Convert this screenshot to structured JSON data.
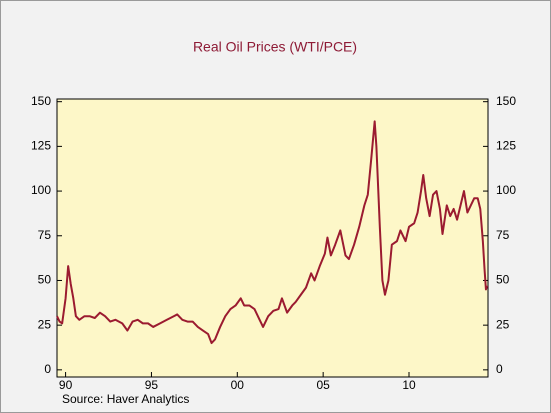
{
  "chart_data": {
    "type": "line",
    "title": "Real Oil Prices (WTI/PCE)",
    "source": "Source: Haver Analytics",
    "xlim": [
      1990,
      2015.1
    ],
    "xticks": [
      {
        "value": 1990.5,
        "label": "90"
      },
      {
        "value": 1995.5,
        "label": "95"
      },
      {
        "value": 2000.5,
        "label": "00"
      },
      {
        "value": 2005.5,
        "label": "05"
      },
      {
        "value": 2010.5,
        "label": "10"
      }
    ],
    "ylim": [
      -4,
      151.5
    ],
    "yticks": [
      0,
      25,
      50,
      75,
      100,
      125,
      150
    ],
    "y2lim": [
      -4,
      151.5
    ],
    "y2ticks": [
      0,
      25,
      50,
      75,
      100,
      125,
      150
    ],
    "background": "#fdf7c8",
    "x": [
      1990.0,
      1990.15,
      1990.3,
      1990.5,
      1990.65,
      1990.8,
      1990.95,
      1991.1,
      1991.3,
      1991.6,
      1991.9,
      1992.2,
      1992.5,
      1992.8,
      1993.1,
      1993.4,
      1993.8,
      1994.1,
      1994.4,
      1994.7,
      1995.0,
      1995.3,
      1995.6,
      1996.0,
      1996.4,
      1996.8,
      1997.0,
      1997.3,
      1997.6,
      1997.9,
      1998.2,
      1998.5,
      1998.8,
      1999.0,
      1999.2,
      1999.5,
      1999.8,
      2000.1,
      2000.4,
      2000.7,
      2000.9,
      2001.2,
      2001.5,
      2001.8,
      2002.0,
      2002.3,
      2002.6,
      2002.9,
      2003.1,
      2003.4,
      2003.7,
      2003.9,
      2004.2,
      2004.5,
      2004.8,
      2005.0,
      2005.3,
      2005.6,
      2005.75,
      2005.95,
      2006.2,
      2006.5,
      2006.8,
      2007.0,
      2007.3,
      2007.6,
      2007.9,
      2008.1,
      2008.3,
      2008.5,
      2008.6,
      2008.8,
      2008.95,
      2009.1,
      2009.3,
      2009.5,
      2009.8,
      2010.0,
      2010.3,
      2010.5,
      2010.8,
      2011.0,
      2011.2,
      2011.33,
      2011.5,
      2011.7,
      2011.9,
      2012.1,
      2012.3,
      2012.45,
      2012.7,
      2012.9,
      2013.1,
      2013.3,
      2013.5,
      2013.7,
      2013.9,
      2014.1,
      2014.3,
      2014.5,
      2014.65,
      2014.8,
      2014.9,
      2014.98,
      2015.05
    ],
    "series": [
      {
        "color": "#9b1b30",
        "values": [
          30,
          27,
          26,
          40,
          58,
          48,
          40,
          30,
          28,
          30,
          30,
          29,
          32,
          30,
          27,
          28,
          26,
          22,
          27,
          28,
          26,
          26,
          24,
          26,
          28,
          30,
          31,
          28,
          27,
          27,
          24,
          22,
          20,
          15,
          17,
          24,
          30,
          34,
          36,
          40,
          36,
          36,
          34,
          28,
          24,
          30,
          33,
          34,
          40,
          32,
          36,
          38,
          42,
          46,
          54,
          50,
          58,
          65,
          74,
          64,
          70,
          78,
          64,
          62,
          70,
          80,
          92,
          98,
          118,
          139,
          125,
          80,
          50,
          42,
          50,
          70,
          72,
          78,
          72,
          80,
          82,
          88,
          100,
          109,
          96,
          86,
          98,
          100,
          90,
          76,
          92,
          86,
          90,
          84,
          92,
          100,
          88,
          92,
          96,
          96,
          90,
          72,
          56,
          45,
          47
        ]
      }
    ]
  }
}
